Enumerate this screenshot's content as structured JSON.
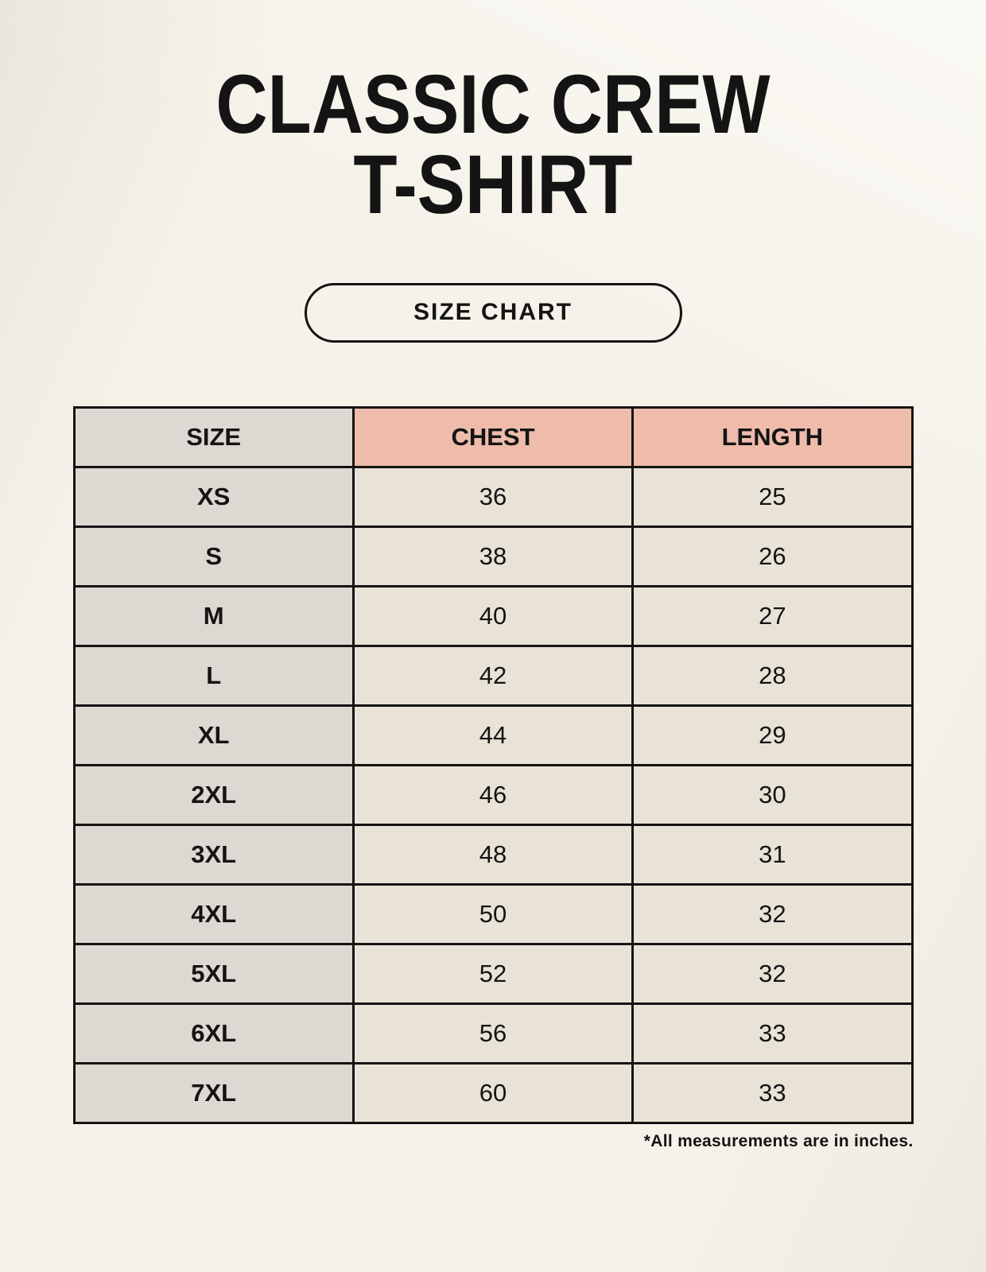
{
  "header": {
    "title_line1": "CLASSIC CREW",
    "title_line2": "T-SHIRT",
    "badge_label": "SIZE CHART"
  },
  "chart_data": {
    "type": "table",
    "title": "CLASSIC CREW T-SHIRT",
    "columns": [
      "SIZE",
      "CHEST",
      "LENGTH"
    ],
    "rows": [
      [
        "XS",
        "36",
        "25"
      ],
      [
        "S",
        "38",
        "26"
      ],
      [
        "M",
        "40",
        "27"
      ],
      [
        "L",
        "42",
        "28"
      ],
      [
        "XL",
        "44",
        "29"
      ],
      [
        "2XL",
        "46",
        "30"
      ],
      [
        "3XL",
        "48",
        "31"
      ],
      [
        "4XL",
        "50",
        "32"
      ],
      [
        "5XL",
        "52",
        "32"
      ],
      [
        "6XL",
        "56",
        "33"
      ],
      [
        "7XL",
        "60",
        "33"
      ]
    ],
    "footnote": "*All measurements are in inches.",
    "units": "inches"
  },
  "colors": {
    "background": "#f6f2ea",
    "size_column_bg": "#ded8d2",
    "header_accent_bg": "#efbcab",
    "cell_bg": "#e9e3d7",
    "border": "#141414",
    "text": "#141414"
  }
}
